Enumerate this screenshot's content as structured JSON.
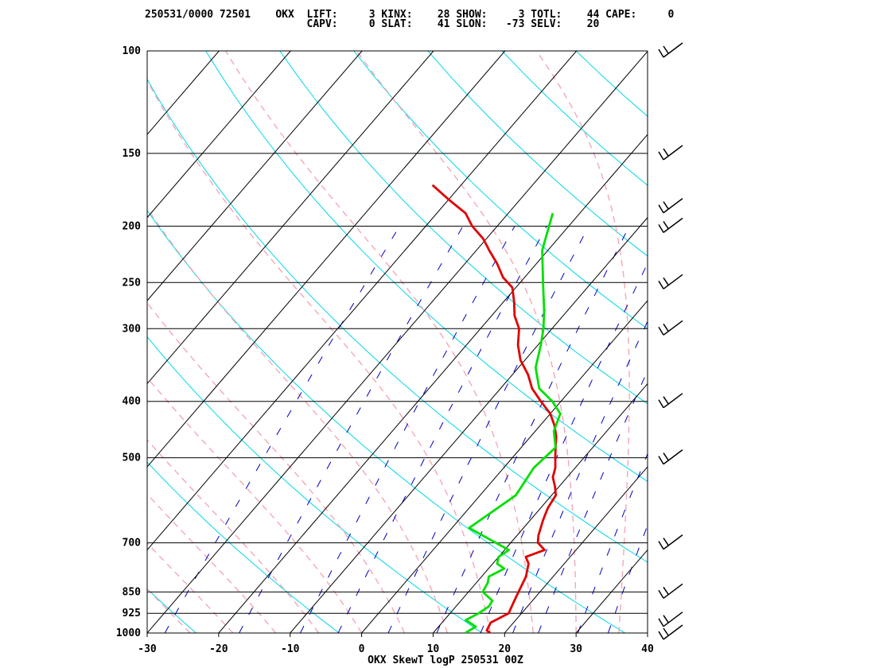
{
  "header": {
    "line1": "250531/0000 72501    OKX  LIFT:     3 KINX:    28 SHOW:     3 TOTL:    44 CAPE:     0",
    "line2": "                          CAPV:     0 SLAT:    41 SLON:   -73 SELV:    20"
  },
  "chart_data": {
    "type": "line",
    "title": "OKX SkewT logP 250531 00Z",
    "xlabel": "",
    "ylabel": "",
    "xlim": [
      -30,
      40
    ],
    "ylim": [
      1000,
      100
    ],
    "y_scale": "log",
    "skew": true,
    "x_ticks": [
      -30,
      -20,
      -10,
      0,
      10,
      20,
      30,
      40
    ],
    "y_ticks": [
      100,
      150,
      200,
      250,
      300,
      400,
      500,
      700,
      850,
      925,
      1000
    ],
    "legend": "none",
    "colors": {
      "temperature": "#e00000",
      "dewpoint": "#00e000",
      "isotherm": "#000000",
      "dry_adiabat": "#00d8e8",
      "moist_adiabat": "#f4a8b4",
      "mixing_ratio": "#0000c0",
      "isobar": "#000000"
    },
    "series": [
      {
        "x": [
          18,
          17.2,
          16.8,
          18.2,
          17.8,
          17.4,
          17.0,
          16.2,
          15.0,
          13.8,
          15.6,
          13.8,
          13.0,
          11.8,
          11.0,
          10.6,
          9.4,
          8.0,
          7.2,
          6.0,
          4.8,
          3.6,
          2.0,
          0.0,
          -2.8,
          -5.6,
          -7.8,
          -10.6,
          -12.8,
          -14.6,
          -16.8,
          -18.5,
          -20.5,
          -23.0,
          -25.5,
          -28.0,
          -30.5,
          -33.5,
          -36.0,
          -40.0,
          -44.0
        ],
        "y": [
          1000,
          990,
          960,
          925,
          900,
          875,
          850,
          800,
          760,
          740,
          720,
          700,
          680,
          640,
          610,
          580,
          560,
          540,
          520,
          500,
          480,
          460,
          440,
          420,
          400,
          380,
          360,
          340,
          320,
          300,
          285,
          270,
          255,
          245,
          232,
          221,
          210,
          200,
          190,
          180,
          170
        ]
      },
      {
        "x": [
          14.5,
          15.2,
          13.0,
          14.0,
          14.6,
          14.4,
          12.0,
          11.6,
          11.0,
          12.2,
          10.6,
          10.0,
          10.6,
          2.4,
          5.0,
          4.2,
          4.8,
          2.6,
          1.4,
          -1.2,
          -4.6,
          -7.6,
          -9.6,
          -11.2,
          -13.2,
          -16.8,
          -20.8,
          -23.8
        ],
        "y": [
          1000,
          975,
          950,
          925,
          900,
          880,
          850,
          820,
          800,
          775,
          760,
          740,
          720,
          660,
          580,
          520,
          480,
          450,
          420,
          400,
          380,
          350,
          320,
          300,
          280,
          250,
          220,
          190
        ]
      }
    ],
    "wind_barbs": [
      {
        "p": 1000
      },
      {
        "p": 950
      },
      {
        "p": 850
      },
      {
        "p": 700
      },
      {
        "p": 500
      },
      {
        "p": 400
      },
      {
        "p": 300
      },
      {
        "p": 250
      },
      {
        "p": 200
      },
      {
        "p": 185
      },
      {
        "p": 150
      },
      {
        "p": 100
      }
    ]
  }
}
